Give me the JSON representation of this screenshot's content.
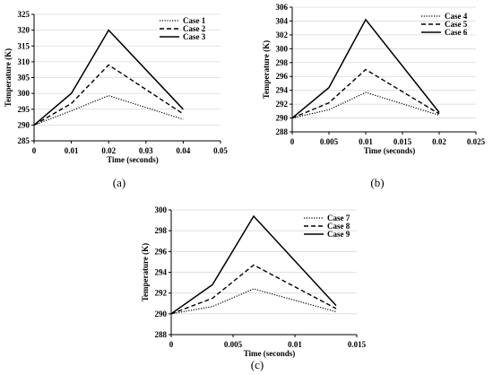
{
  "chart_data": [
    {
      "type": "line",
      "panel_label": "(a)",
      "xlabel": "Time (seconds)",
      "ylabel": "Temperature (K)",
      "xlim": [
        0,
        0.05
      ],
      "ylim": [
        285,
        325
      ],
      "xticks": [
        0,
        0.01,
        0.02,
        0.03,
        0.04,
        0.05
      ],
      "xtick_labels": [
        "0",
        "0.01",
        "0.02",
        "0.03",
        "0.04",
        "0.05"
      ],
      "yticks": [
        285,
        290,
        295,
        300,
        305,
        310,
        315,
        320,
        325
      ],
      "ytick_labels": [
        "285",
        "290",
        "295",
        "300",
        "305",
        "310",
        "315",
        "320",
        "325"
      ],
      "grid": true,
      "legend_position": "top-right",
      "series": [
        {
          "name": "Case 1",
          "style": "dotted",
          "x": [
            0,
            0.01,
            0.02,
            0.04
          ],
          "y": [
            290,
            294.5,
            299.3,
            291.8
          ]
        },
        {
          "name": "Case 2",
          "style": "dashed",
          "x": [
            0,
            0.01,
            0.02,
            0.04
          ],
          "y": [
            290,
            296.8,
            309,
            293.5
          ]
        },
        {
          "name": "Case 3",
          "style": "solid",
          "x": [
            0,
            0.01,
            0.02,
            0.04
          ],
          "y": [
            290,
            300,
            320,
            295
          ]
        }
      ]
    },
    {
      "type": "line",
      "panel_label": "(b)",
      "xlabel": "Time (seconds)",
      "ylabel": "Temperature (K)",
      "xlim": [
        0,
        0.025
      ],
      "ylim": [
        288,
        306
      ],
      "xticks": [
        0,
        0.005,
        0.01,
        0.015,
        0.02,
        0.025
      ],
      "xtick_labels": [
        "0",
        "0.005",
        "0.01",
        "0.015",
        "0.02",
        "0.025"
      ],
      "yticks": [
        288,
        290,
        292,
        294,
        296,
        298,
        300,
        302,
        304,
        306
      ],
      "ytick_labels": [
        "288",
        "290",
        "292",
        "294",
        "296",
        "298",
        "300",
        "302",
        "304",
        "306"
      ],
      "grid": true,
      "legend_position": "top-right",
      "series": [
        {
          "name": "Case 4",
          "style": "dotted",
          "x": [
            0,
            0.005,
            0.01,
            0.02
          ],
          "y": [
            290,
            291.2,
            293.7,
            290.4
          ]
        },
        {
          "name": "Case 5",
          "style": "dashed",
          "x": [
            0,
            0.005,
            0.01,
            0.02
          ],
          "y": [
            290,
            292.2,
            297,
            290.6
          ]
        },
        {
          "name": "Case 6",
          "style": "solid",
          "x": [
            0,
            0.005,
            0.01,
            0.02
          ],
          "y": [
            290,
            294.4,
            304.2,
            290.8
          ]
        }
      ]
    },
    {
      "type": "line",
      "panel_label": "(c)",
      "xlabel": "Time (seconds)",
      "ylabel": "Temperature (K)",
      "xlim": [
        0,
        0.015
      ],
      "ylim": [
        288,
        300
      ],
      "xticks": [
        0,
        0.005,
        0.01,
        0.015
      ],
      "xtick_labels": [
        "0",
        "0.005",
        "0.01",
        "0.015"
      ],
      "yticks": [
        288,
        290,
        292,
        294,
        296,
        298,
        300
      ],
      "ytick_labels": [
        "288",
        "290",
        "292",
        "294",
        "296",
        "298",
        "300"
      ],
      "grid": true,
      "legend_position": "top-right",
      "series": [
        {
          "name": "Case 7",
          "style": "dotted",
          "x": [
            0,
            0.00333,
            0.00667,
            0.01333
          ],
          "y": [
            290,
            290.7,
            292.4,
            290.2
          ]
        },
        {
          "name": "Case 8",
          "style": "dashed",
          "x": [
            0,
            0.00333,
            0.00667,
            0.01333
          ],
          "y": [
            290,
            291.5,
            294.7,
            290.5
          ]
        },
        {
          "name": "Case 9",
          "style": "solid",
          "x": [
            0,
            0.00333,
            0.00667,
            0.01333
          ],
          "y": [
            290,
            292.8,
            299.4,
            290.8
          ]
        }
      ]
    }
  ]
}
